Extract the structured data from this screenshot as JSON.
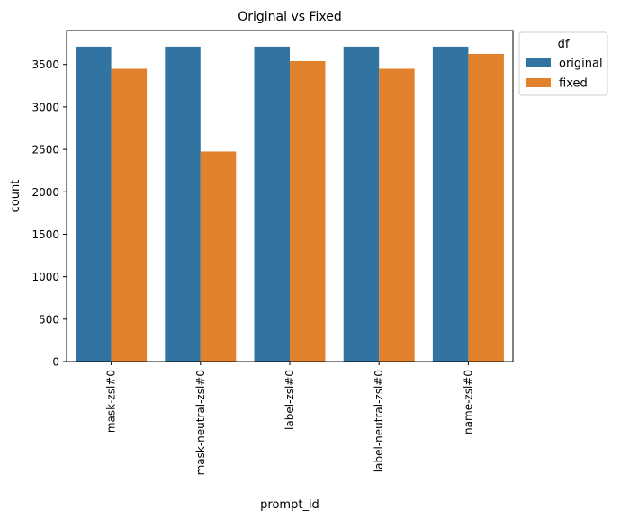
{
  "chart_data": {
    "type": "bar",
    "title": "Original vs Fixed",
    "xlabel": "prompt_id",
    "ylabel": "count",
    "categories": [
      "mask-zsl#0",
      "mask-neutral-zsl#0",
      "label-zsl#0",
      "label-neutral-zsl#0",
      "name-zsl#0"
    ],
    "series": [
      {
        "name": "original",
        "color": "#3274a1",
        "values": [
          3710,
          3710,
          3710,
          3710,
          3710
        ]
      },
      {
        "name": "fixed",
        "color": "#e1812c",
        "values": [
          3450,
          2475,
          3540,
          3450,
          3625
        ]
      }
    ],
    "ylim": [
      0,
      3900
    ],
    "yticks": [
      0,
      500,
      1000,
      1500,
      2000,
      2500,
      3000,
      3500
    ],
    "grid": false,
    "legend": {
      "title": "df",
      "placement": "outside-top-right"
    }
  }
}
